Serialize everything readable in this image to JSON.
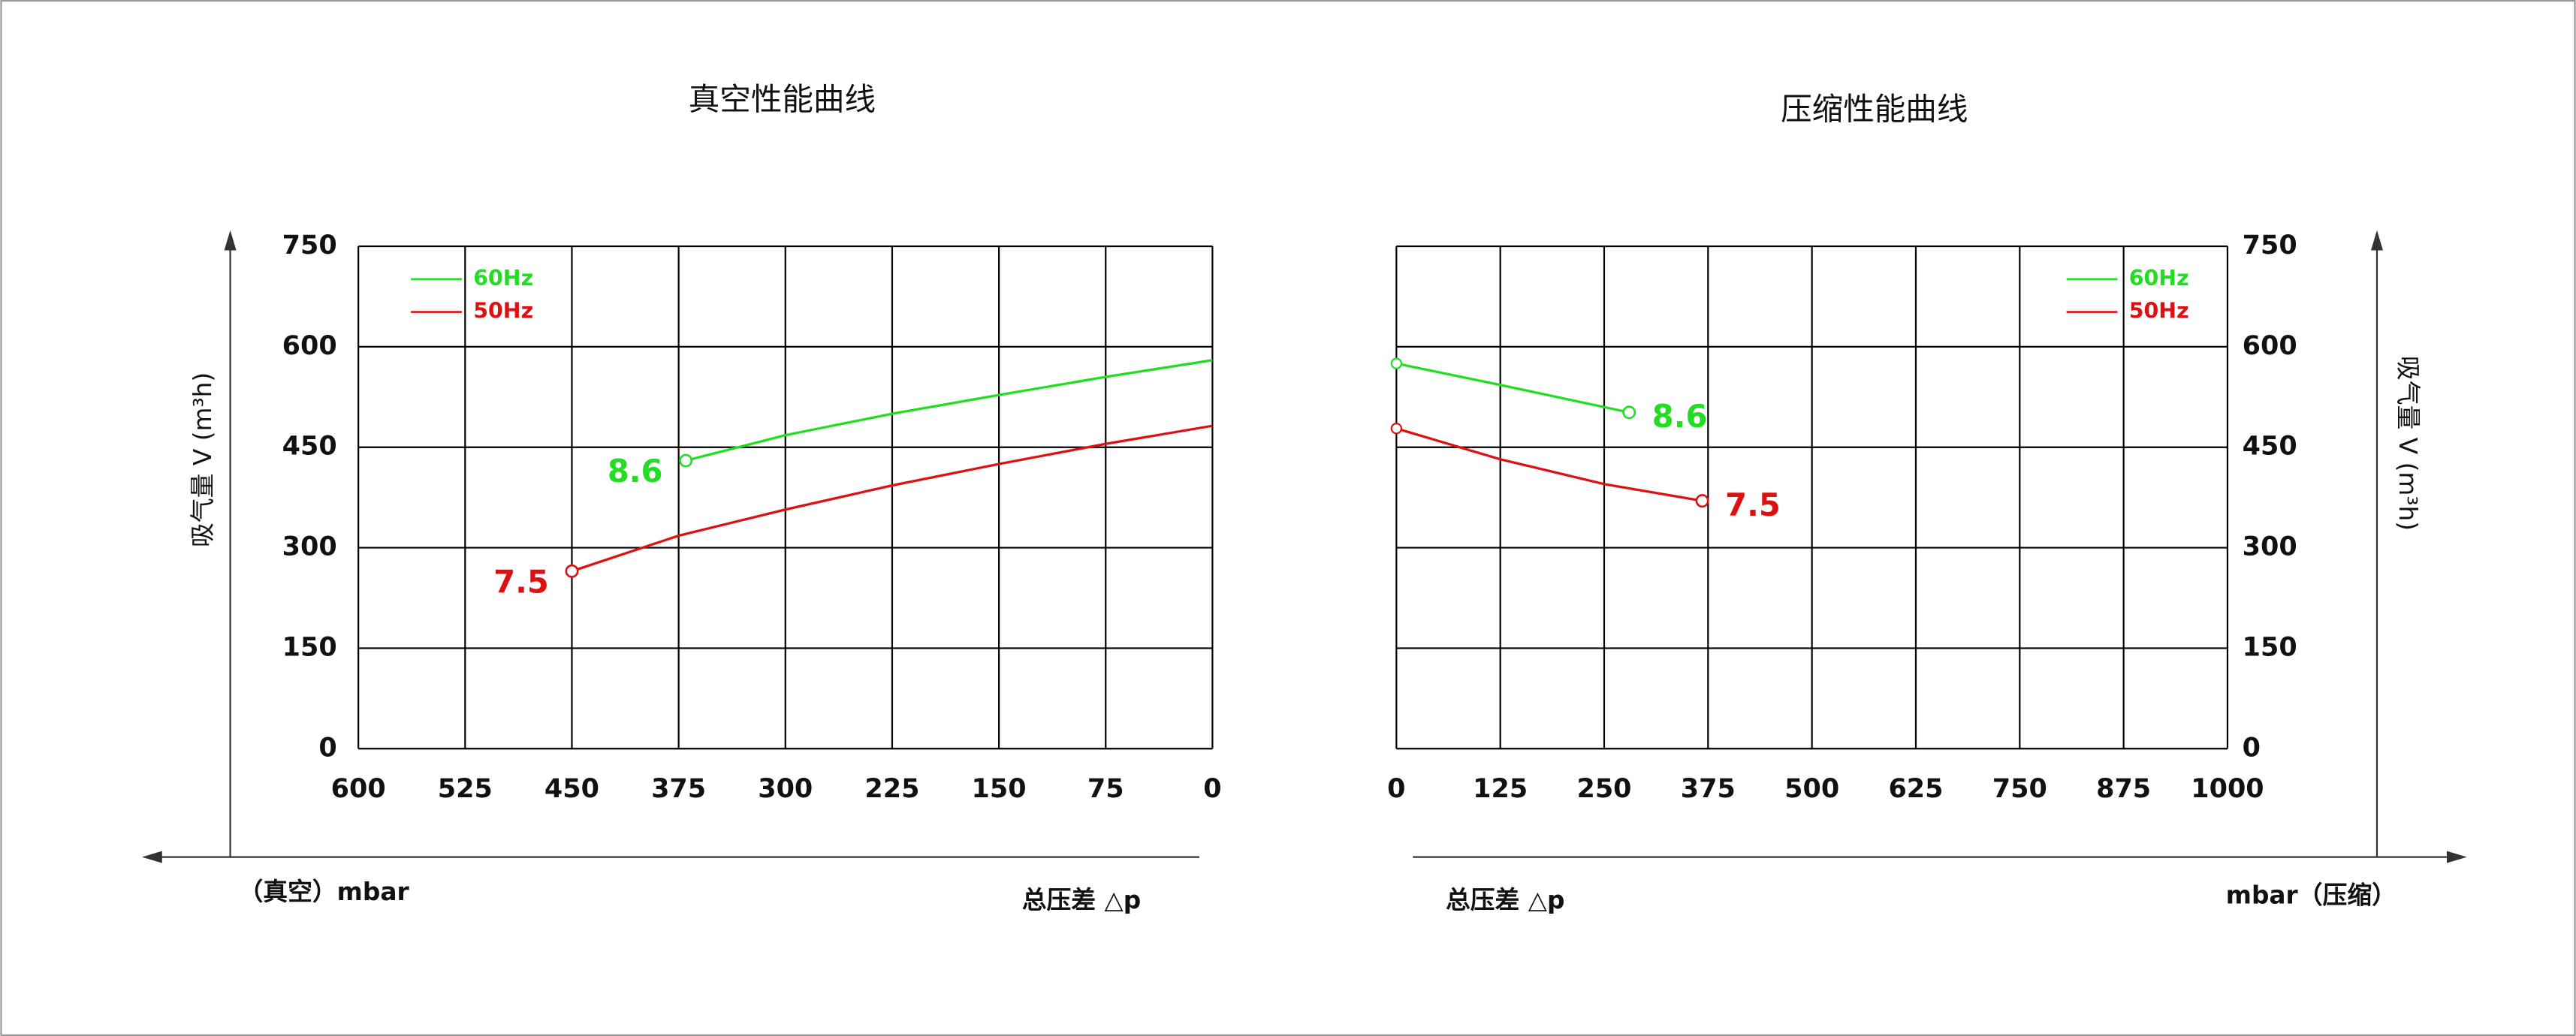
{
  "chart_data": [
    {
      "type": "line",
      "title": "真空性能曲线",
      "ylabel": "吸气量 V (m³h)",
      "yaxis_side": "left",
      "xlabels": [
        "（真空）mbar",
        "总压差 △p"
      ],
      "xlim": [
        600,
        0
      ],
      "ylim": [
        0,
        750
      ],
      "xticks": [
        600,
        525,
        450,
        375,
        300,
        225,
        150,
        75,
        0
      ],
      "yticks": [
        0,
        150,
        300,
        450,
        600,
        750
      ],
      "grid": true,
      "series": [
        {
          "name": "60Hz",
          "color": "#22dd22",
          "label": "8.6",
          "x": [
            370,
            300,
            225,
            150,
            75,
            0
          ],
          "values": [
            430,
            468,
            500,
            528,
            555,
            580
          ]
        },
        {
          "name": "50Hz",
          "color": "#dd1111",
          "label": "7.5",
          "x": [
            450,
            375,
            300,
            225,
            150,
            75,
            0
          ],
          "values": [
            265,
            318,
            357,
            393,
            425,
            455,
            482
          ]
        }
      ]
    },
    {
      "type": "line",
      "title": "压缩性能曲线",
      "ylabel": "吸气量 V (m³h)",
      "yaxis_side": "right",
      "xlabels": [
        "总压差 △p",
        "mbar（压缩）"
      ],
      "xlim": [
        0,
        1000
      ],
      "ylim": [
        0,
        750
      ],
      "xticks": [
        0,
        125,
        250,
        375,
        500,
        625,
        750,
        875,
        1000
      ],
      "yticks": [
        0,
        150,
        300,
        450,
        600,
        750
      ],
      "grid": true,
      "series": [
        {
          "name": "60Hz",
          "color": "#22dd22",
          "label": "8.6",
          "x": [
            0,
            125,
            280
          ],
          "values": [
            575,
            543,
            502
          ]
        },
        {
          "name": "50Hz",
          "color": "#dd1111",
          "label": "7.5",
          "x": [
            0,
            125,
            250,
            368
          ],
          "values": [
            478,
            432,
            395,
            370
          ]
        }
      ]
    }
  ]
}
